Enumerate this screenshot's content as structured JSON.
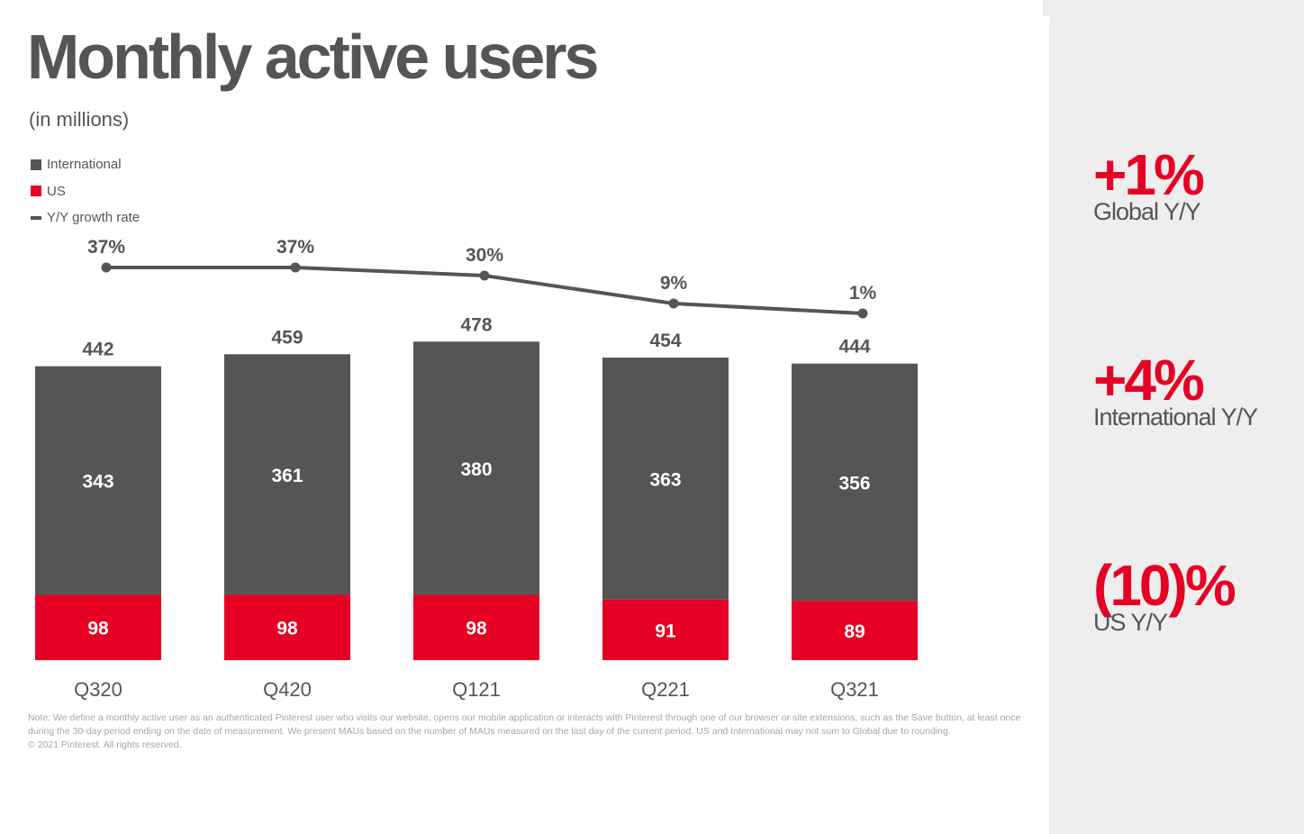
{
  "title": "Monthly active users",
  "subtitle": "(in millions)",
  "legend": [
    {
      "label": "International",
      "color": "#555555",
      "kind": "square"
    },
    {
      "label": "US",
      "color": "#e60023",
      "kind": "square"
    },
    {
      "label": "Y/Y growth rate",
      "color": "#555555",
      "kind": "line"
    }
  ],
  "chart_data": {
    "type": "bar",
    "stacked": true,
    "categories": [
      "Q320",
      "Q420",
      "Q121",
      "Q221",
      "Q321"
    ],
    "series": [
      {
        "name": "US",
        "values": [
          98,
          98,
          98,
          91,
          89
        ],
        "color": "#e60023"
      },
      {
        "name": "International",
        "values": [
          343,
          361,
          380,
          363,
          356
        ],
        "color": "#555555"
      }
    ],
    "totals": [
      442,
      459,
      478,
      454,
      444
    ],
    "growth_rate": {
      "name": "Y/Y growth rate",
      "values": [
        37,
        37,
        30,
        9,
        1
      ],
      "labels": [
        "37%",
        "37%",
        "30%",
        "9%",
        "1%"
      ]
    },
    "title": "Monthly active users",
    "ylabel": "(in millions)"
  },
  "note": "Note: We define a monthly active user as an authenticated Pinterest user who visits our website, opens our mobile application or interacts with Pinterest through one of our browser or site extensions, such as the Save button, at least once during the 30-day period ending on the date of measurement. We present MAUs based on the number of MAUs measured on the last day of the current period. US and International may not sum to Global due to rounding.",
  "copyright": "© 2021 Pinterest. All rights reserved.",
  "stats": [
    {
      "value": "+1%",
      "label": "Global Y/Y"
    },
    {
      "value": "+4%",
      "label": "International Y/Y"
    },
    {
      "value": "(10)%",
      "label": "US Y/Y"
    }
  ]
}
